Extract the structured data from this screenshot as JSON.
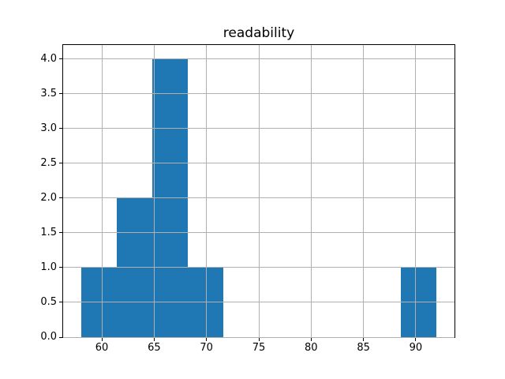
{
  "chart_data": {
    "type": "bar",
    "subtype": "histogram",
    "title": "readability",
    "xlabel": "",
    "ylabel": "",
    "bin_edges": [
      58.0,
      61.4,
      64.8,
      68.2,
      71.6,
      75.0,
      78.4,
      81.8,
      85.2,
      88.6,
      92.0
    ],
    "counts": [
      1,
      2,
      4,
      1,
      0,
      0,
      0,
      0,
      0,
      1
    ],
    "xlim": [
      56.3,
      93.7
    ],
    "ylim": [
      0,
      4.2
    ],
    "xticks": [
      60,
      65,
      70,
      75,
      80,
      85,
      90
    ],
    "xtick_labels": [
      "60",
      "65",
      "70",
      "75",
      "80",
      "85",
      "90"
    ],
    "yticks": [
      0.0,
      0.5,
      1.0,
      1.5,
      2.0,
      2.5,
      3.0,
      3.5,
      4.0
    ],
    "ytick_labels": [
      "0.0",
      "0.5",
      "1.0",
      "1.5",
      "2.0",
      "2.5",
      "3.0",
      "3.5",
      "4.0"
    ],
    "grid": true,
    "legend": false,
    "colors": {
      "bar": "#1f77b4",
      "grid": "#b0b0b0",
      "spine": "#000000",
      "background": "#ffffff",
      "text": "#000000"
    }
  }
}
